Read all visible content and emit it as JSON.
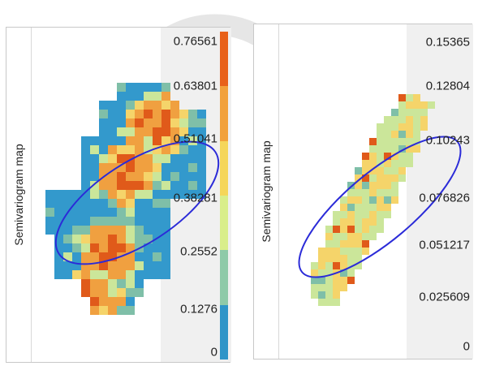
{
  "panels": [
    {
      "ylabel": "Semivariogram map",
      "ticks": [
        "0.76561",
        "0.63801",
        "0.51041",
        "0.38281",
        "0.2552",
        "0.1276",
        "0"
      ],
      "colorbar": [
        "#e8611a",
        "#f2a13a",
        "#f5d65a",
        "#d9ee8a",
        "#8fcaa8",
        "#2f95c8"
      ]
    },
    {
      "ylabel": "Semivariogram map",
      "ticks": [
        "0.15365",
        "0.12804",
        "0.10243",
        "0.076826",
        "0.051217",
        "0.025609",
        "0"
      ]
    }
  ],
  "colors": {
    "blue": "#3399cc",
    "teal": "#7fbfa8",
    "green": "#cbe69a",
    "yellow": "#f5d46a",
    "orange": "#f0a040",
    "red": "#e05a1a",
    "ellipse": "#2b2bd8"
  }
}
